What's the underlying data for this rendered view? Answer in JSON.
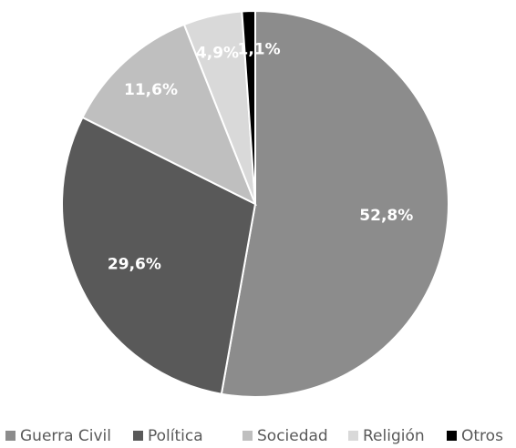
{
  "chart_data": {
    "type": "pie",
    "categories": [
      "Guerra Civil",
      "Política",
      "Sociedad",
      "Religión",
      "Otros"
    ],
    "values": [
      52.8,
      29.6,
      11.6,
      4.9,
      1.1
    ],
    "value_labels": [
      "52,8%",
      "29,6%",
      "11,6%",
      "4,9%",
      "1,1%"
    ],
    "colors": [
      "#8c8c8c",
      "#595959",
      "#bfbfbf",
      "#d9d9d9",
      "#000000"
    ],
    "legend_position": "bottom",
    "title": "",
    "start_angle": "12 o'clock",
    "direction": "clockwise"
  }
}
